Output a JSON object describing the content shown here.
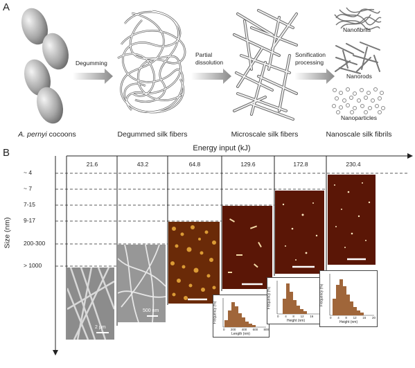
{
  "panel_a": {
    "letter": "A",
    "cocoon_label_italic": "A. pernyi",
    "cocoon_label_rest": " cocoons",
    "steps": [
      {
        "caption": "Degummed silk fibers",
        "arrow_label_1": "Degumming",
        "arrow_label_2": ""
      },
      {
        "caption": "Microscale silk fibers",
        "arrow_label_1": "Partial",
        "arrow_label_2": "dissolution"
      },
      {
        "caption": "Nanoscale silk fibrils",
        "arrow_label_1": "Sonification",
        "arrow_label_2": "processing"
      }
    ],
    "nano_labels": [
      "Nanofibrils",
      "Nanorods",
      "Nanoparticles"
    ]
  },
  "panel_b": {
    "letter": "B",
    "x_title": "Energy input (kJ)",
    "y_title": "Size (nm)",
    "energy_values": [
      "21.6",
      "43.2",
      "64.8",
      "129.6",
      "172.8",
      "230.4"
    ],
    "size_labels": [
      "~ 4",
      "~ 7",
      "7-15",
      "9-17",
      "200-300",
      "> 1000"
    ],
    "scale_labels": [
      "2 μm",
      "500 nm"
    ],
    "histograms": [
      {
        "xlabel": "Length (nm)",
        "ylabel": "Frequency (%)",
        "ticks": [
          "0",
          "200",
          "400",
          "600",
          "800"
        ]
      },
      {
        "xlabel": "Height (nm)",
        "ylabel": "Frequency (%)",
        "ticks": [
          "0",
          "4",
          "8",
          "12",
          "16",
          "20"
        ]
      },
      {
        "xlabel": "Height (nm)",
        "ylabel": "Frequency (%)",
        "ticks": [
          "0",
          "4",
          "8",
          "12",
          "16",
          "20"
        ]
      }
    ]
  }
}
